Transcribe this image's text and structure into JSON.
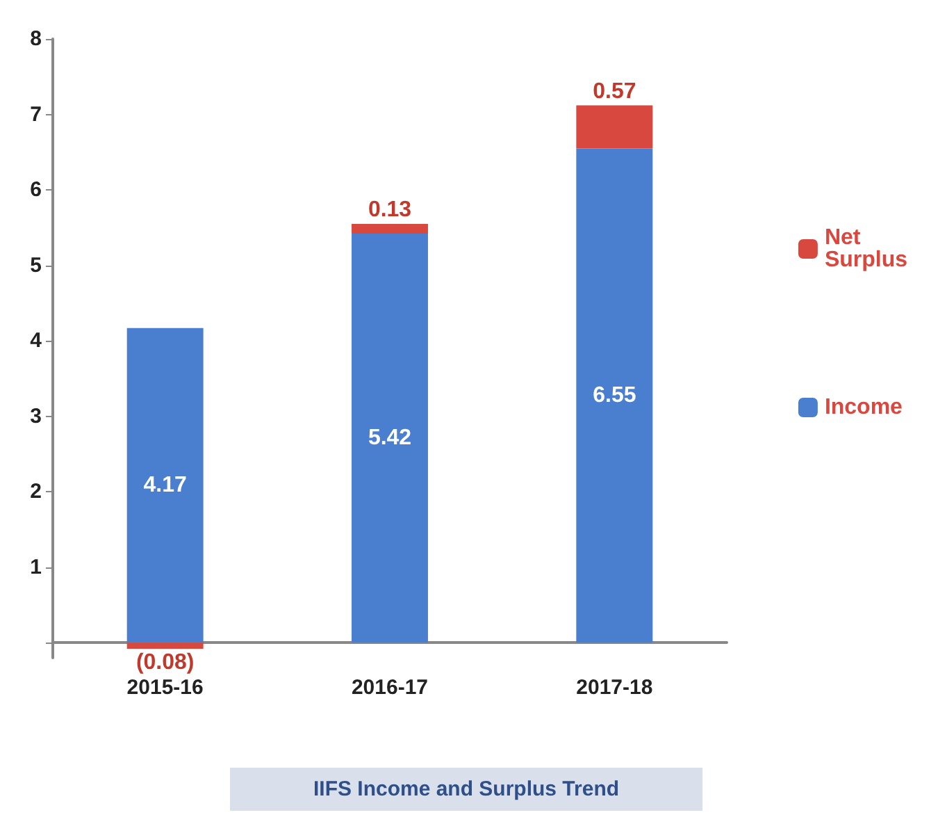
{
  "chart_data": {
    "type": "bar",
    "title": "IIFS Income and Surplus Trend",
    "categories": [
      "2015-16",
      "2016-17",
      "2017-18"
    ],
    "stacked": true,
    "series": [
      {
        "name": "Income",
        "color": "#4a7fcf",
        "values": [
          4.17,
          5.42,
          6.55
        ],
        "value_labels": [
          "4.17",
          "5.42",
          "6.55"
        ]
      },
      {
        "name": "Net Surplus",
        "color": "#d9483f",
        "values": [
          -0.08,
          0.13,
          0.57
        ],
        "value_labels": [
          "(0.08)",
          "0.13",
          "0.57"
        ]
      }
    ],
    "ylim": [
      -0.2,
      8
    ],
    "yticks": [
      {
        "value": 0,
        "label": null
      },
      1,
      2,
      3,
      4,
      5,
      6,
      7,
      8
    ],
    "grid": false,
    "legend": "right"
  }
}
